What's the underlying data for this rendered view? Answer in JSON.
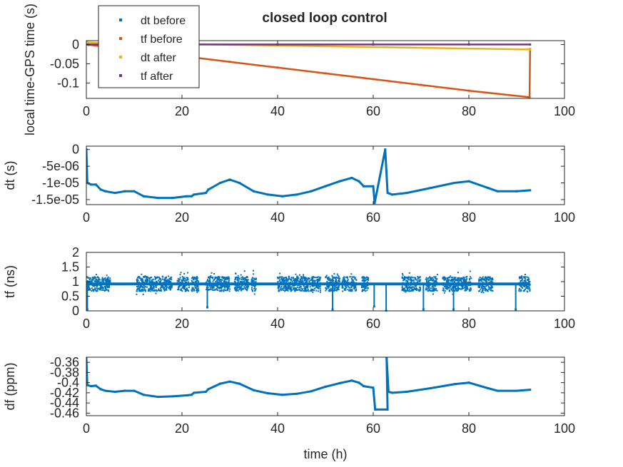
{
  "figure": {
    "title": "closed loop control",
    "xlabel": "time (h)"
  },
  "colors": {
    "blue": "#0072BD",
    "orange": "#D95319",
    "yellow": "#EDB120",
    "purple": "#7E2F8E",
    "axes": "#262626"
  },
  "chart_data": [
    {
      "type": "scatter",
      "ylabel": "local time-GPS time (s)",
      "xlim": [
        0,
        100
      ],
      "ylim": [
        -0.14,
        0.01
      ],
      "xticks": [
        "0",
        "20",
        "40",
        "60",
        "80",
        "100"
      ],
      "yticks": [
        {
          "value": 0,
          "label": "0"
        },
        {
          "value": -0.05,
          "label": "-0.05"
        },
        {
          "value": -0.1,
          "label": "-0.1"
        }
      ],
      "legend": {
        "position": "top-left"
      },
      "series": [
        {
          "name": "dt before",
          "color": "#0072BD",
          "points": [
            [
              0,
              0.0
            ],
            [
              0.2,
              0.0
            ],
            [
              0.5,
              -0.001
            ]
          ]
        },
        {
          "name": "tf before",
          "color": "#D95319",
          "points": [
            [
              0,
              0.0
            ],
            [
              10,
              -0.015
            ],
            [
              20,
              -0.03
            ],
            [
              30,
              -0.045
            ],
            [
              40,
              -0.06
            ],
            [
              50,
              -0.075
            ],
            [
              60,
              -0.09
            ],
            [
              70,
              -0.105
            ],
            [
              80,
              -0.12
            ],
            [
              92.7,
              -0.137
            ],
            [
              92.8,
              -0.012
            ]
          ]
        },
        {
          "name": "dt after",
          "color": "#EDB120",
          "points": [
            [
              0,
              0.008
            ],
            [
              0.5,
              0.005
            ],
            [
              92.8,
              -0.013
            ]
          ]
        },
        {
          "name": "tf after",
          "color": "#7E2F8E",
          "points": [
            [
              0,
              0.0
            ],
            [
              20,
              0.0
            ],
            [
              40,
              0.0
            ],
            [
              60,
              0.0
            ],
            [
              80,
              0.0
            ],
            [
              92.8,
              0.0
            ]
          ]
        }
      ]
    },
    {
      "type": "scatter",
      "ylabel": "dt (s)",
      "xlim": [
        0,
        100
      ],
      "ylim": [
        -1.65e-05,
        1e-06
      ],
      "xticks": [
        "0",
        "20",
        "40",
        "60",
        "80",
        "100"
      ],
      "yticks": [
        {
          "value": 0,
          "label": "0"
        },
        {
          "value": -5e-06,
          "label": "-5e-06"
        },
        {
          "value": -1e-05,
          "label": "-1e-05"
        },
        {
          "value": -1.5e-05,
          "label": "-1.5e-05"
        }
      ],
      "series": [
        {
          "name": "dt",
          "color": "#0072BD",
          "points": [
            [
              0,
              0.0
            ],
            [
              0.2,
              -1e-05
            ],
            [
              1,
              -1.05e-05
            ],
            [
              2,
              -1.05e-05
            ],
            [
              3,
              -1.2e-05
            ],
            [
              4,
              -1.25e-05
            ],
            [
              6,
              -1.3e-05
            ],
            [
              8,
              -1.25e-05
            ],
            [
              10,
              -1.25e-05
            ],
            [
              12,
              -1.4e-05
            ],
            [
              15,
              -1.45e-05
            ],
            [
              18,
              -1.45e-05
            ],
            [
              21,
              -1.4e-05
            ],
            [
              22,
              -1.4e-05
            ],
            [
              22.5,
              -1.35e-05
            ],
            [
              25,
              -1.3e-05
            ],
            [
              25.5,
              -1.2e-05
            ],
            [
              28,
              -1e-05
            ],
            [
              30,
              -9e-06
            ],
            [
              32,
              -1e-05
            ],
            [
              35,
              -1.25e-05
            ],
            [
              38,
              -1.35e-05
            ],
            [
              41,
              -1.4e-05
            ],
            [
              44,
              -1.35e-05
            ],
            [
              47,
              -1.25e-05
            ],
            [
              50,
              -1.1e-05
            ],
            [
              53,
              -9.5e-06
            ],
            [
              55.5,
              -8.5e-06
            ],
            [
              57,
              -9.5e-06
            ],
            [
              58,
              -1.1e-05
            ],
            [
              60,
              -1.1e-05
            ],
            [
              60.3,
              -1.6e-05
            ],
            [
              62.5,
              0.0
            ],
            [
              63,
              -1.3e-05
            ],
            [
              64,
              -1.35e-05
            ],
            [
              67,
              -1.3e-05
            ],
            [
              72,
              -1.15e-05
            ],
            [
              77,
              -1e-05
            ],
            [
              80,
              -9.5e-06
            ],
            [
              84,
              -1.15e-05
            ],
            [
              86,
              -1.25e-05
            ],
            [
              90,
              -1.25e-05
            ],
            [
              92.8,
              -1.22e-05
            ]
          ]
        }
      ]
    },
    {
      "type": "scatter",
      "ylabel": "tf (ns)",
      "xlim": [
        0,
        100
      ],
      "ylim": [
        0,
        2
      ],
      "xticks": [
        "0",
        "20",
        "40",
        "60",
        "80",
        "100"
      ],
      "yticks": [
        {
          "value": 0,
          "label": "0"
        },
        {
          "value": 0.5,
          "label": "0.5"
        },
        {
          "value": 1,
          "label": "1"
        },
        {
          "value": 1.5,
          "label": "1.5"
        },
        {
          "value": 2,
          "label": "2"
        }
      ],
      "baseline": 0.92,
      "bursts": [
        [
          0,
          5
        ],
        [
          10.5,
          18
        ],
        [
          19,
          21.5
        ],
        [
          22,
          23.5
        ],
        [
          25,
          30
        ],
        [
          31,
          34
        ],
        [
          34.5,
          35.5
        ],
        [
          40,
          49
        ],
        [
          50,
          53
        ],
        [
          53.5,
          56.5
        ],
        [
          57.5,
          59
        ],
        [
          66,
          70
        ],
        [
          71,
          73.5
        ],
        [
          74.5,
          80.5
        ],
        [
          82,
          85
        ],
        [
          90.5,
          92.8
        ]
      ],
      "dropouts": [
        [
          0.2,
          0.05
        ],
        [
          25.3,
          0.12
        ],
        [
          51.5,
          0.05
        ],
        [
          60.2,
          0.15
        ],
        [
          62.7,
          0.0
        ],
        [
          70.5,
          0.05
        ],
        [
          76.8,
          0.05
        ],
        [
          89.8,
          0.05
        ]
      ],
      "series": [
        {
          "name": "tf",
          "color": "#0072BD"
        }
      ]
    },
    {
      "type": "scatter",
      "ylabel": "df (ppm)",
      "xlim": [
        0,
        100
      ],
      "ylim": [
        -0.465,
        -0.35
      ],
      "xticks": [
        "0",
        "20",
        "40",
        "60",
        "80",
        "100"
      ],
      "yticks": [
        {
          "value": -0.36,
          "label": "-0.36"
        },
        {
          "value": -0.38,
          "label": "-0.38"
        },
        {
          "value": -0.4,
          "label": "-0.4"
        },
        {
          "value": -0.42,
          "label": "-0.42"
        },
        {
          "value": -0.44,
          "label": "-0.44"
        },
        {
          "value": -0.46,
          "label": "-0.46"
        }
      ],
      "series": [
        {
          "name": "df",
          "color": "#0072BD",
          "points": [
            [
              0,
              -0.352
            ],
            [
              0.2,
              -0.405
            ],
            [
              1,
              -0.407
            ],
            [
              2,
              -0.406
            ],
            [
              3,
              -0.413
            ],
            [
              4,
              -0.416
            ],
            [
              6,
              -0.418
            ],
            [
              8,
              -0.416
            ],
            [
              10,
              -0.416
            ],
            [
              12,
              -0.424
            ],
            [
              15,
              -0.428
            ],
            [
              18,
              -0.427
            ],
            [
              21,
              -0.425
            ],
            [
              22,
              -0.424
            ],
            [
              22.5,
              -0.42
            ],
            [
              25,
              -0.418
            ],
            [
              25.5,
              -0.413
            ],
            [
              28,
              -0.402
            ],
            [
              30,
              -0.398
            ],
            [
              32,
              -0.402
            ],
            [
              35,
              -0.415
            ],
            [
              38,
              -0.421
            ],
            [
              41,
              -0.424
            ],
            [
              44,
              -0.422
            ],
            [
              47,
              -0.417
            ],
            [
              50,
              -0.408
            ],
            [
              53,
              -0.401
            ],
            [
              55.5,
              -0.396
            ],
            [
              57,
              -0.4
            ],
            [
              58,
              -0.407
            ],
            [
              60,
              -0.41
            ],
            [
              60.4,
              -0.453
            ],
            [
              63,
              -0.453
            ],
            [
              62.8,
              -0.352
            ],
            [
              63.2,
              -0.418
            ],
            [
              64,
              -0.42
            ],
            [
              67,
              -0.418
            ],
            [
              72,
              -0.411
            ],
            [
              77,
              -0.403
            ],
            [
              80,
              -0.4
            ],
            [
              84,
              -0.411
            ],
            [
              86,
              -0.416
            ],
            [
              90,
              -0.416
            ],
            [
              92.8,
              -0.414
            ]
          ]
        }
      ]
    }
  ]
}
